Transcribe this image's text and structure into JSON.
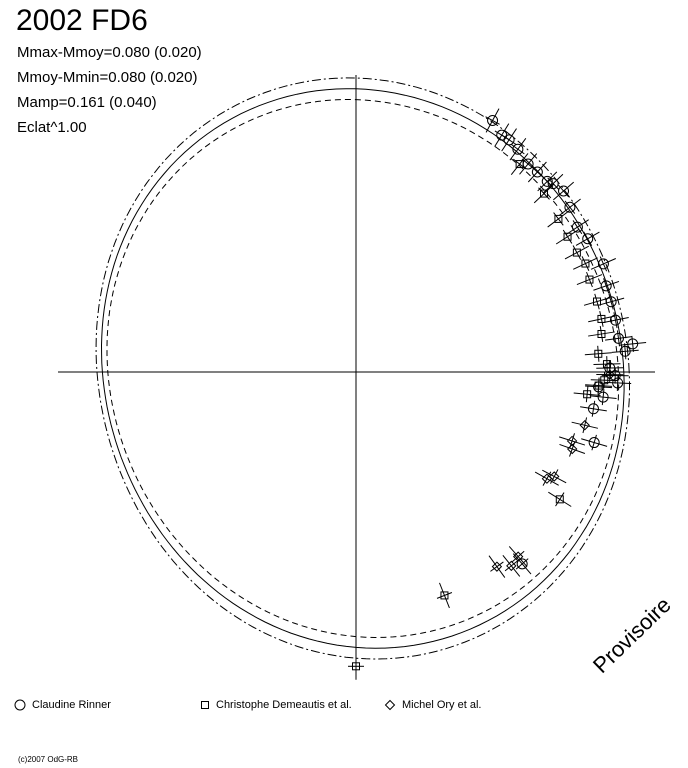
{
  "title": "2002 FD6",
  "parameters": [
    "Mmax-Mmoy=0.080 (0.020)",
    "Mmoy-Mmin=0.080 (0.020)",
    "Mamp=0.161 (0.040)",
    "Eclat^1.00"
  ],
  "watermark": "Provisoire",
  "copyright": "(c)2007 OdG-RB",
  "legend": [
    {
      "label": "Claudine Rinner",
      "symbol": "circle"
    },
    {
      "label": "Christophe Demeautis et al.",
      "symbol": "square"
    },
    {
      "label": "Michel Ory et al.",
      "symbol": "diamond"
    }
  ],
  "chart_data": {
    "type": "scatter",
    "title": "2002 FD6",
    "projection": "polar",
    "axis_range": [
      -1,
      1
    ],
    "grid": false,
    "curves": [
      {
        "style": "solid",
        "amplitude_mag": 0.161
      },
      {
        "style": "dashed",
        "amplitude_mag": 0.121
      },
      {
        "style": "dash-dot",
        "amplitude_mag": 0.201
      }
    ],
    "series": [
      {
        "name": "Claudine Rinner",
        "symbol": "circle",
        "points": [
          {
            "angle_deg": 61.5,
            "r": 1.06
          },
          {
            "angle_deg": 58.4,
            "r": 1.03
          },
          {
            "angle_deg": 56.6,
            "r": 1.03
          },
          {
            "angle_deg": 54.0,
            "r": 1.02
          },
          {
            "angle_deg": 50.4,
            "r": 1.0
          },
          {
            "angle_deg": 47.8,
            "r": 1.0
          },
          {
            "angle_deg": 44.9,
            "r": 1.0
          },
          {
            "angle_deg": 43.7,
            "r": 1.01
          },
          {
            "angle_deg": 41.1,
            "r": 1.02
          },
          {
            "angle_deg": 37.6,
            "r": 1.0
          },
          {
            "angle_deg": 33.2,
            "r": 0.98
          },
          {
            "angle_deg": 29.9,
            "r": 0.99
          },
          {
            "angle_deg": 23.6,
            "r": 1.0
          },
          {
            "angle_deg": 19.0,
            "r": 0.98
          },
          {
            "angle_deg": 15.4,
            "r": 0.98
          },
          {
            "angle_deg": 11.3,
            "r": 0.98
          },
          {
            "angle_deg": 7.3,
            "r": 0.98
          },
          {
            "angle_deg": 5.8,
            "r": 1.03
          },
          {
            "angle_deg": 4.4,
            "r": 1.0
          },
          {
            "angle_deg": 0.9,
            "r": 0.94
          },
          {
            "angle_deg": -0.8,
            "r": 0.96
          },
          {
            "angle_deg": -2.4,
            "r": 0.97
          },
          {
            "angle_deg": -3.5,
            "r": 0.9
          },
          {
            "angle_deg": -5.8,
            "r": 0.92
          },
          {
            "angle_deg": -8.8,
            "r": 0.89
          },
          {
            "angle_deg": -16.5,
            "r": 0.92
          },
          {
            "angle_deg": -49.1,
            "r": 0.94
          }
        ]
      },
      {
        "name": "Christophe Demeautis et al.",
        "symbol": "square",
        "points": [
          {
            "angle_deg": 51.8,
            "r": 0.98
          },
          {
            "angle_deg": 43.5,
            "r": 0.96
          },
          {
            "angle_deg": 37.1,
            "r": 0.94
          },
          {
            "angle_deg": 32.6,
            "r": 0.93
          },
          {
            "angle_deg": 28.4,
            "r": 0.93
          },
          {
            "angle_deg": 25.3,
            "r": 0.94
          },
          {
            "angle_deg": 21.6,
            "r": 0.93
          },
          {
            "angle_deg": 16.3,
            "r": 0.93
          },
          {
            "angle_deg": 12.2,
            "r": 0.93
          },
          {
            "angle_deg": 8.8,
            "r": 0.92
          },
          {
            "angle_deg": 4.3,
            "r": 0.9
          },
          {
            "angle_deg": 1.8,
            "r": 0.93
          },
          {
            "angle_deg": -1.9,
            "r": 0.92
          },
          {
            "angle_deg": -3.2,
            "r": 0.9
          },
          {
            "angle_deg": -5.5,
            "r": 0.86
          },
          {
            "angle_deg": -32.0,
            "r": 0.89
          },
          {
            "angle_deg": -68.4,
            "r": 0.89
          },
          {
            "angle_deg": -90.0,
            "r": 1.09
          }
        ]
      },
      {
        "name": "Michel Ory et al.",
        "symbol": "diamond",
        "points": [
          {
            "angle_deg": -0.6,
            "r": 0.94
          },
          {
            "angle_deg": -13.1,
            "r": 0.87
          },
          {
            "angle_deg": -17.7,
            "r": 0.84
          },
          {
            "angle_deg": -19.6,
            "r": 0.85
          },
          {
            "angle_deg": -27.8,
            "r": 0.83
          },
          {
            "angle_deg": -29.2,
            "r": 0.81
          },
          {
            "angle_deg": -48.7,
            "r": 0.91
          },
          {
            "angle_deg": -51.3,
            "r": 0.92
          },
          {
            "angle_deg": -54.1,
            "r": 0.89
          }
        ]
      }
    ]
  }
}
